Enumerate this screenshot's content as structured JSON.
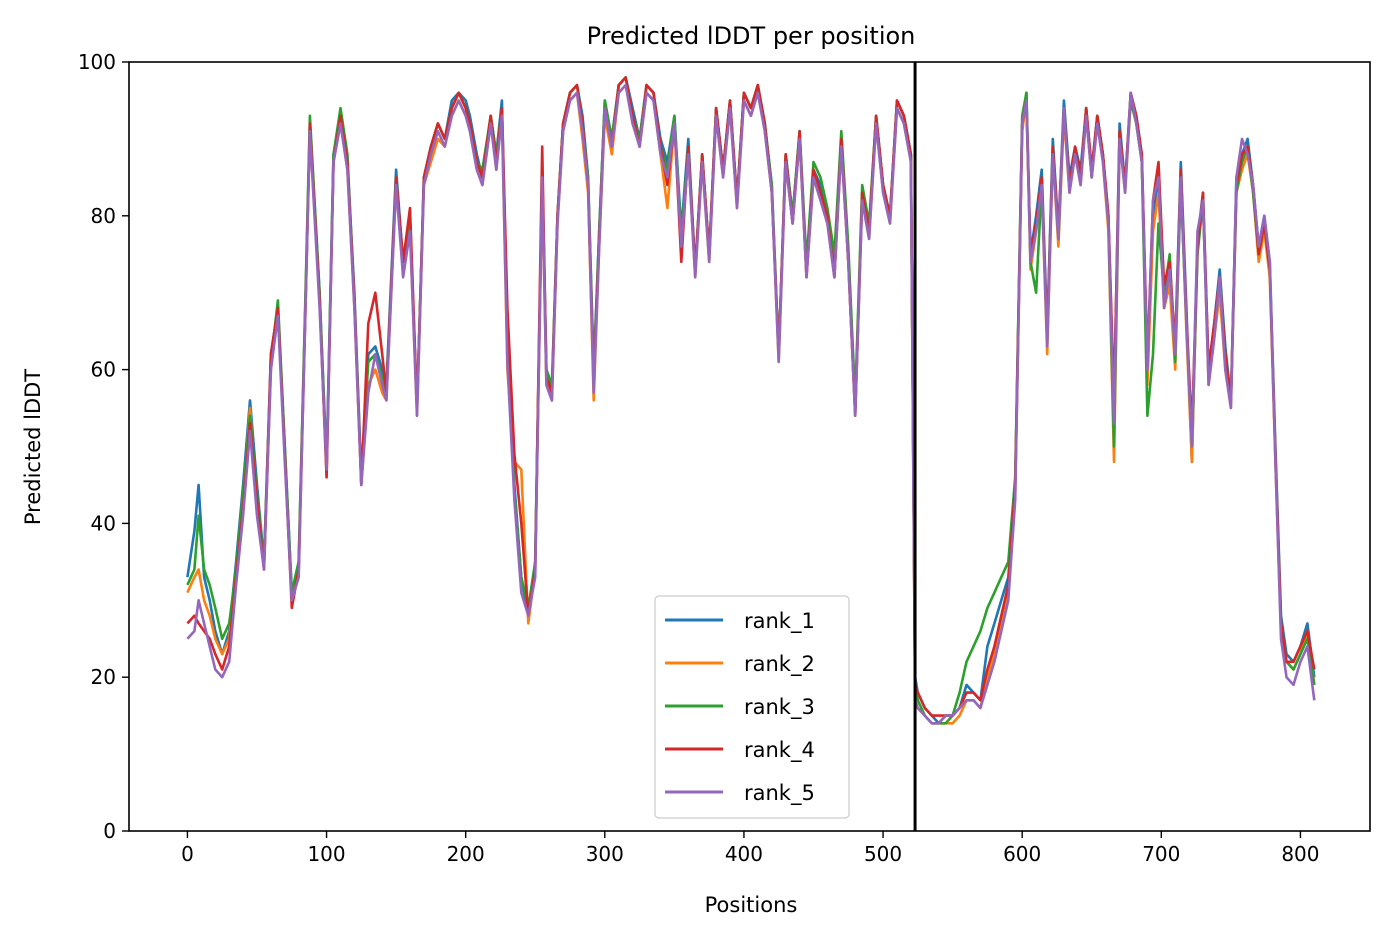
{
  "chart_data": {
    "type": "line",
    "title": "Predicted lDDT per position",
    "xlabel": "Positions",
    "ylabel": "Predicted lDDT",
    "xlim": [
      -42,
      850
    ],
    "ylim": [
      0,
      100
    ],
    "xticks": [
      0,
      100,
      200,
      300,
      400,
      500,
      600,
      700,
      800
    ],
    "yticks": [
      0,
      20,
      40,
      60,
      80,
      100
    ],
    "grid": false,
    "legend_position": "lower-center",
    "chain_break_x": 523,
    "x": [
      0,
      5,
      8,
      12,
      16,
      20,
      25,
      30,
      35,
      40,
      45,
      50,
      55,
      60,
      65,
      70,
      75,
      80,
      85,
      88,
      95,
      100,
      105,
      110,
      115,
      120,
      125,
      130,
      135,
      140,
      143,
      150,
      155,
      160,
      165,
      170,
      175,
      180,
      185,
      190,
      195,
      200,
      203,
      208,
      212,
      218,
      222,
      226,
      230,
      235,
      240,
      245,
      250,
      255,
      258,
      262,
      266,
      270,
      275,
      280,
      284,
      288,
      292,
      296,
      300,
      305,
      310,
      315,
      320,
      325,
      330,
      335,
      340,
      345,
      350,
      355,
      360,
      365,
      370,
      375,
      380,
      385,
      390,
      395,
      400,
      405,
      410,
      415,
      420,
      425,
      430,
      435,
      440,
      445,
      450,
      455,
      460,
      465,
      470,
      475,
      480,
      485,
      490,
      495,
      500,
      505,
      510,
      515,
      520,
      523,
      525,
      530,
      535,
      540,
      545,
      550,
      555,
      560,
      565,
      570,
      575,
      580,
      585,
      590,
      595,
      600,
      603,
      606,
      610,
      614,
      618,
      622,
      626,
      630,
      634,
      638,
      642,
      646,
      650,
      654,
      658,
      662,
      666,
      670,
      674,
      678,
      682,
      686,
      690,
      694,
      698,
      702,
      706,
      710,
      714,
      718,
      722,
      726,
      730,
      734,
      738,
      742,
      746,
      750,
      754,
      758,
      762,
      766,
      770,
      774,
      778,
      782,
      786,
      790,
      795,
      800,
      805,
      810
    ],
    "series": [
      {
        "name": "rank_1",
        "color": "#1f77b4",
        "values": [
          33,
          39,
          45,
          33,
          30,
          26,
          23,
          26,
          35,
          45,
          56,
          45,
          35,
          62,
          68,
          50,
          31,
          35,
          70,
          92,
          70,
          47,
          88,
          93,
          87,
          70,
          46,
          62,
          63,
          60,
          58,
          86,
          74,
          80,
          55,
          85,
          89,
          92,
          90,
          95,
          96,
          95,
          93,
          88,
          85,
          93,
          88,
          95,
          65,
          45,
          33,
          28,
          35,
          85,
          60,
          57,
          80,
          92,
          96,
          97,
          93,
          85,
          60,
          78,
          95,
          90,
          97,
          98,
          94,
          90,
          97,
          96,
          90,
          87,
          93,
          78,
          90,
          73,
          88,
          75,
          94,
          86,
          95,
          82,
          96,
          94,
          97,
          92,
          84,
          62,
          88,
          80,
          91,
          73,
          86,
          84,
          80,
          73,
          90,
          75,
          55,
          83,
          78,
          93,
          84,
          80,
          95,
          93,
          88,
          20,
          18,
          16,
          15,
          14,
          15,
          15,
          16,
          19,
          18,
          17,
          24,
          27,
          30,
          33,
          45,
          92,
          96,
          75,
          80,
          86,
          65,
          90,
          78,
          95,
          85,
          89,
          86,
          94,
          86,
          93,
          88,
          80,
          55,
          92,
          84,
          96,
          93,
          88,
          60,
          80,
          85,
          70,
          73,
          63,
          87,
          68,
          48,
          77,
          83,
          60,
          66,
          73,
          63,
          56,
          85,
          88,
          90,
          84,
          76,
          80,
          74,
          50,
          28,
          23,
          22,
          24,
          27,
          20
        ]
      },
      {
        "name": "rank_2",
        "color": "#ff7f0e",
        "values": [
          31,
          33,
          34,
          30,
          28,
          25,
          23,
          25,
          34,
          43,
          55,
          42,
          34,
          60,
          68,
          49,
          30,
          34,
          70,
          91,
          69,
          46,
          87,
          92,
          86,
          68,
          45,
          58,
          60,
          57,
          56,
          84,
          73,
          78,
          54,
          84,
          87,
          90,
          89,
          93,
          95,
          93,
          91,
          86,
          84,
          92,
          86,
          93,
          60,
          48,
          47,
          27,
          34,
          84,
          58,
          56,
          79,
          91,
          95,
          96,
          90,
          83,
          56,
          76,
          93,
          88,
          96,
          97,
          92,
          89,
          96,
          95,
          88,
          81,
          92,
          76,
          88,
          72,
          87,
          74,
          93,
          85,
          94,
          81,
          95,
          93,
          96,
          91,
          83,
          61,
          87,
          79,
          90,
          72,
          85,
          82,
          79,
          72,
          89,
          74,
          54,
          82,
          77,
          92,
          83,
          79,
          94,
          92,
          87,
          17,
          16,
          15,
          14,
          14,
          14,
          14,
          15,
          17,
          17,
          16,
          20,
          23,
          27,
          31,
          44,
          91,
          95,
          73,
          78,
          84,
          62,
          88,
          76,
          93,
          83,
          88,
          84,
          93,
          85,
          92,
          87,
          78,
          48,
          90,
          83,
          95,
          92,
          87,
          58,
          78,
          83,
          68,
          71,
          60,
          85,
          65,
          48,
          76,
          82,
          58,
          64,
          70,
          60,
          55,
          83,
          86,
          88,
          83,
          74,
          78,
          72,
          48,
          26,
          22,
          21,
          23,
          26,
          19
        ]
      },
      {
        "name": "rank_3",
        "color": "#2ca02c",
        "values": [
          32,
          34,
          41,
          34,
          32,
          29,
          25,
          27,
          34,
          44,
          54,
          44,
          35,
          61,
          69,
          50,
          31,
          35,
          71,
          93,
          70,
          48,
          88,
          94,
          88,
          69,
          46,
          61,
          62,
          59,
          57,
          85,
          74,
          79,
          55,
          85,
          89,
          92,
          90,
          94,
          96,
          94,
          92,
          87,
          86,
          93,
          88,
          94,
          63,
          44,
          33,
          29,
          35,
          86,
          60,
          58,
          80,
          92,
          96,
          97,
          92,
          85,
          59,
          78,
          95,
          90,
          97,
          98,
          93,
          90,
          97,
          96,
          89,
          86,
          93,
          77,
          89,
          73,
          88,
          75,
          94,
          86,
          95,
          82,
          96,
          94,
          97,
          92,
          84,
          62,
          88,
          80,
          91,
          74,
          87,
          85,
          81,
          75,
          91,
          76,
          56,
          84,
          79,
          93,
          84,
          80,
          95,
          93,
          88,
          19,
          17,
          15,
          14,
          14,
          14,
          15,
          18,
          22,
          24,
          26,
          29,
          31,
          33,
          35,
          46,
          93,
          96,
          74,
          70,
          84,
          64,
          89,
          77,
          94,
          84,
          88,
          85,
          94,
          85,
          93,
          88,
          79,
          50,
          91,
          84,
          95,
          92,
          87,
          54,
          62,
          79,
          70,
          75,
          61,
          84,
          66,
          50,
          75,
          82,
          59,
          65,
          72,
          62,
          56,
          83,
          87,
          89,
          83,
          75,
          79,
          73,
          49,
          27,
          22,
          21,
          23,
          25,
          19
        ]
      },
      {
        "name": "rank_4",
        "color": "#d62728",
        "values": [
          27,
          28,
          27,
          26,
          25,
          23,
          21,
          24,
          33,
          42,
          53,
          43,
          34,
          62,
          68,
          49,
          29,
          34,
          69,
          92,
          69,
          46,
          87,
          93,
          87,
          69,
          45,
          66,
          70,
          62,
          57,
          85,
          74,
          81,
          55,
          85,
          89,
          92,
          90,
          94,
          96,
          94,
          92,
          87,
          85,
          93,
          87,
          94,
          68,
          49,
          40,
          28,
          34,
          89,
          59,
          57,
          80,
          92,
          96,
          97,
          92,
          84,
          58,
          77,
          94,
          89,
          97,
          98,
          93,
          89,
          97,
          96,
          89,
          84,
          92,
          74,
          89,
          73,
          88,
          75,
          94,
          86,
          95,
          82,
          96,
          94,
          97,
          92,
          83,
          62,
          88,
          79,
          91,
          72,
          86,
          83,
          80,
          72,
          90,
          74,
          54,
          83,
          78,
          93,
          84,
          80,
          95,
          93,
          88,
          19,
          18,
          16,
          15,
          15,
          15,
          15,
          16,
          18,
          18,
          17,
          21,
          24,
          28,
          32,
          45,
          92,
          95,
          75,
          79,
          85,
          64,
          89,
          78,
          94,
          84,
          89,
          85,
          94,
          86,
          93,
          88,
          80,
          56,
          91,
          84,
          96,
          93,
          88,
          61,
          82,
          87,
          71,
          74,
          63,
          86,
          67,
          52,
          76,
          83,
          60,
          66,
          72,
          62,
          56,
          84,
          88,
          89,
          84,
          75,
          79,
          73,
          49,
          27,
          22,
          22,
          24,
          26,
          21
        ]
      },
      {
        "name": "rank_5",
        "color": "#9467bd",
        "values": [
          25,
          26,
          30,
          27,
          24,
          21,
          20,
          22,
          32,
          41,
          52,
          41,
          34,
          60,
          67,
          48,
          30,
          33,
          69,
          91,
          68,
          47,
          87,
          92,
          86,
          68,
          45,
          57,
          62,
          58,
          56,
          84,
          72,
          78,
          54,
          84,
          88,
          91,
          89,
          93,
          95,
          93,
          91,
          86,
          84,
          92,
          86,
          93,
          61,
          43,
          31,
          28,
          33,
          85,
          58,
          56,
          79,
          91,
          95,
          96,
          91,
          84,
          57,
          76,
          94,
          89,
          96,
          97,
          92,
          89,
          96,
          95,
          88,
          85,
          92,
          76,
          88,
          72,
          87,
          74,
          93,
          85,
          94,
          81,
          95,
          93,
          96,
          91,
          83,
          61,
          87,
          79,
          90,
          72,
          85,
          82,
          79,
          72,
          89,
          74,
          54,
          82,
          77,
          92,
          83,
          79,
          94,
          92,
          87,
          17,
          16,
          15,
          14,
          14,
          15,
          15,
          16,
          17,
          17,
          16,
          19,
          22,
          26,
          30,
          43,
          92,
          95,
          74,
          78,
          84,
          63,
          88,
          77,
          94,
          83,
          88,
          84,
          93,
          85,
          92,
          87,
          79,
          53,
          90,
          83,
          96,
          92,
          87,
          60,
          82,
          85,
          68,
          73,
          62,
          85,
          66,
          50,
          78,
          82,
          58,
          64,
          72,
          60,
          55,
          85,
          90,
          88,
          84,
          76,
          80,
          74,
          48,
          25,
          20,
          19,
          22,
          24,
          17
        ]
      }
    ]
  }
}
